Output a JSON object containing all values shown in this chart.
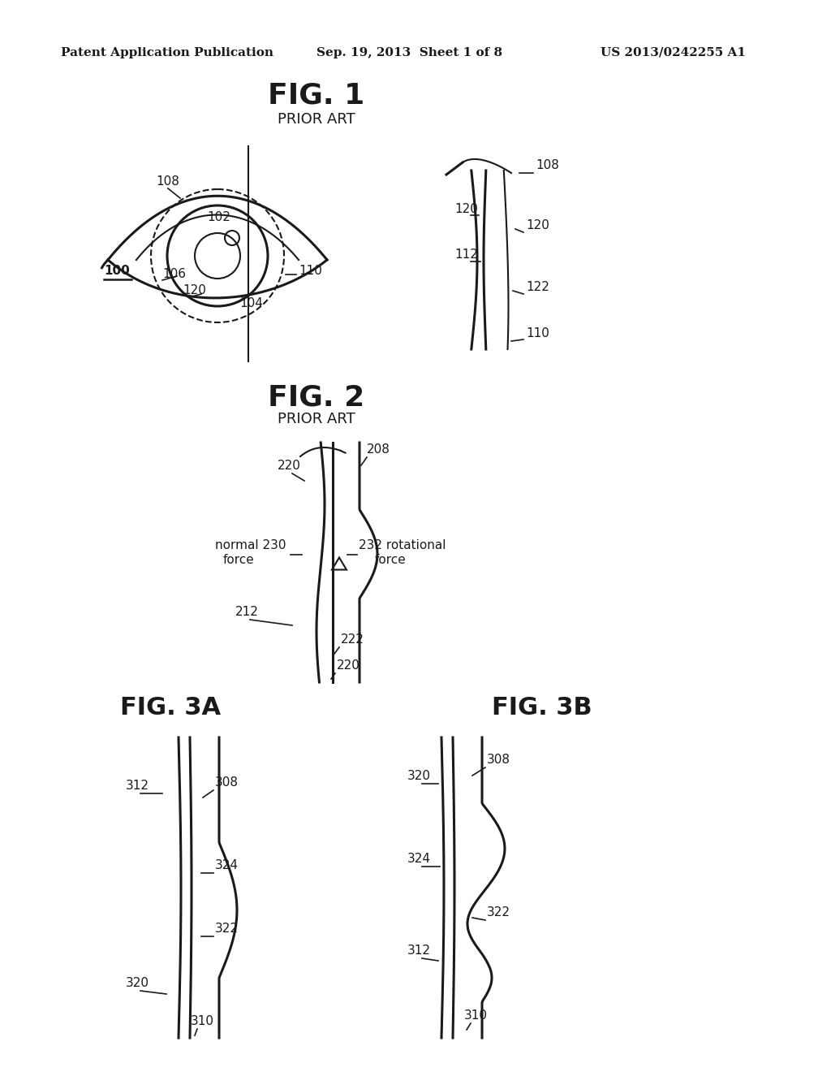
{
  "bg_color": "#ffffff",
  "text_color": "#1a1a1a",
  "header_left": "Patent Application Publication",
  "header_center": "Sep. 19, 2013  Sheet 1 of 8",
  "header_right": "US 2013/0242255 A1",
  "fig1_title": "FIG. 1",
  "fig1_subtitle": "PRIOR ART",
  "fig2_title": "FIG. 2",
  "fig2_subtitle": "PRIOR ART",
  "fig3a_title": "FIG. 3A",
  "fig3b_title": "FIG. 3B"
}
